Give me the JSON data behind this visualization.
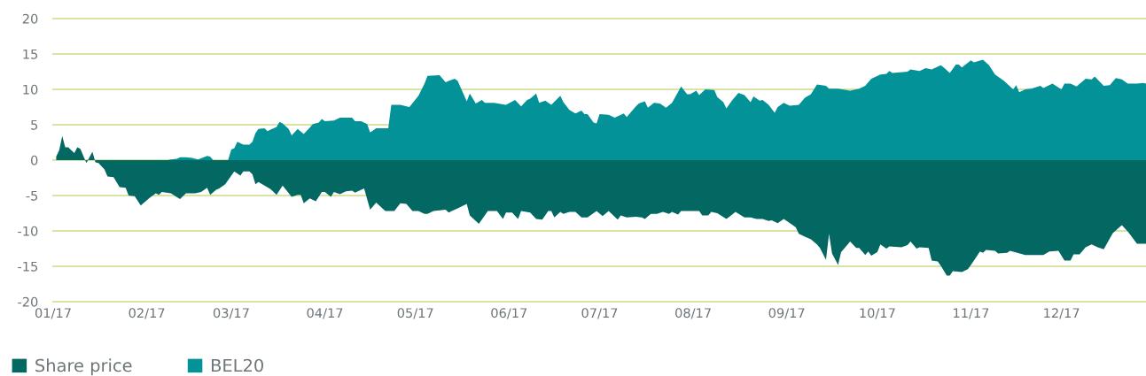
{
  "chart_data": {
    "type": "area",
    "series": [
      {
        "name": "Share price",
        "color": "#036862",
        "x": [
          "2017-01-02",
          "2017-01-03",
          "2017-01-04",
          "2017-01-05",
          "2017-01-06",
          "2017-01-08",
          "2017-01-09",
          "2017-01-10",
          "2017-01-12",
          "2017-01-14",
          "2017-01-15",
          "2017-01-16",
          "2017-01-18",
          "2017-01-19",
          "2017-01-21",
          "2017-01-23",
          "2017-01-25",
          "2017-01-26",
          "2017-01-28",
          "2017-01-30",
          "2017-02-02",
          "2017-02-04",
          "2017-02-05",
          "2017-02-06",
          "2017-02-09",
          "2017-02-12",
          "2017-02-14",
          "2017-02-17",
          "2017-02-19",
          "2017-02-21",
          "2017-02-22",
          "2017-02-24",
          "2017-02-25",
          "2017-02-27",
          "2017-03-01",
          "2017-03-02",
          "2017-03-04",
          "2017-03-05",
          "2017-03-07",
          "2017-03-08",
          "2017-03-09",
          "2017-03-10",
          "2017-03-12",
          "2017-03-14",
          "2017-03-16",
          "2017-03-18",
          "2017-03-21",
          "2017-03-23",
          "2017-03-24",
          "2017-03-25",
          "2017-03-27",
          "2017-03-29",
          "2017-03-31",
          "2017-04-01",
          "2017-04-03",
          "2017-04-04",
          "2017-04-06",
          "2017-04-08",
          "2017-04-10",
          "2017-04-11",
          "2017-04-14",
          "2017-04-16",
          "2017-04-18",
          "2017-04-21",
          "2017-04-24",
          "2017-04-26",
          "2017-04-28",
          "2017-04-30",
          "2017-05-02",
          "2017-05-04",
          "2017-05-05",
          "2017-05-07",
          "2017-05-11",
          "2017-05-12",
          "2017-05-15",
          "2017-05-18",
          "2017-05-19",
          "2017-05-22",
          "2017-05-25",
          "2017-05-28",
          "2017-05-30",
          "2017-05-31",
          "2017-06-02",
          "2017-06-04",
          "2017-06-05",
          "2017-06-08",
          "2017-06-10",
          "2017-06-12",
          "2017-06-14",
          "2017-06-15",
          "2017-06-16",
          "2017-06-18",
          "2017-06-19",
          "2017-06-21",
          "2017-06-23",
          "2017-06-25",
          "2017-06-27",
          "2017-06-30",
          "2017-07-02",
          "2017-07-04",
          "2017-07-07",
          "2017-07-08",
          "2017-07-10",
          "2017-07-13",
          "2017-07-15",
          "2017-07-16",
          "2017-07-18",
          "2017-07-20",
          "2017-07-22",
          "2017-07-24",
          "2017-07-25",
          "2017-07-27",
          "2017-07-28",
          "2017-08-03",
          "2017-08-04",
          "2017-08-06",
          "2017-08-07",
          "2017-08-09",
          "2017-08-12",
          "2017-08-13",
          "2017-08-15",
          "2017-08-18",
          "2017-08-20",
          "2017-08-22",
          "2017-08-24",
          "2017-08-26",
          "2017-08-27",
          "2017-08-29",
          "2017-08-31",
          "2017-09-01",
          "2017-09-03",
          "2017-09-04",
          "2017-09-05",
          "2017-09-07",
          "2017-09-09",
          "2017-09-11",
          "2017-09-12",
          "2017-09-14",
          "2017-09-15",
          "2017-09-16",
          "2017-09-18",
          "2017-09-19",
          "2017-09-22",
          "2017-09-24",
          "2017-09-25",
          "2017-09-27",
          "2017-09-28",
          "2017-09-29",
          "2017-10-01",
          "2017-10-02",
          "2017-10-04",
          "2017-10-05",
          "2017-10-09",
          "2017-10-11",
          "2017-10-12",
          "2017-10-14",
          "2017-10-15",
          "2017-10-18",
          "2017-10-19",
          "2017-10-21",
          "2017-10-22",
          "2017-10-24",
          "2017-10-25",
          "2017-10-26",
          "2017-10-29",
          "2017-10-31",
          "2017-11-01",
          "2017-11-02",
          "2017-11-04",
          "2017-11-05",
          "2017-11-06",
          "2017-11-09",
          "2017-11-10",
          "2017-11-13",
          "2017-11-14",
          "2017-11-19",
          "2017-11-25",
          "2017-11-27",
          "2017-11-30",
          "2017-12-01",
          "2017-12-02",
          "2017-12-04",
          "2017-12-05",
          "2017-12-07",
          "2017-12-09",
          "2017-12-11",
          "2017-12-13",
          "2017-12-15",
          "2017-12-18",
          "2017-12-21",
          "2017-12-23",
          "2017-12-26",
          "2017-12-29"
        ],
        "values": [
          0.5,
          1.4,
          3.4,
          1.8,
          1.8,
          1.0,
          1.8,
          1.6,
          -0.4,
          1.2,
          -0.3,
          -0.4,
          -1.3,
          -2.3,
          -2.4,
          -3.8,
          -3.9,
          -5.0,
          -5.1,
          -6.4,
          -5.3,
          -4.7,
          -4.9,
          -4.5,
          -4.7,
          -5.5,
          -4.7,
          -4.7,
          -4.5,
          -3.9,
          -4.9,
          -4.2,
          -4.0,
          -3.4,
          -2.2,
          -1.6,
          -2.2,
          -1.6,
          -1.6,
          -2.0,
          -3.4,
          -3.1,
          -3.6,
          -4.1,
          -4.9,
          -3.6,
          -5.2,
          -4.9,
          -4.9,
          -6.1,
          -5.4,
          -5.8,
          -4.5,
          -4.5,
          -5.2,
          -4.5,
          -4.8,
          -4.4,
          -4.3,
          -4.6,
          -4.0,
          -7.0,
          -6.0,
          -7.2,
          -7.2,
          -6.1,
          -6.2,
          -7.2,
          -7.2,
          -7.6,
          -7.6,
          -7.2,
          -7.0,
          -7.4,
          -6.8,
          -6.2,
          -7.8,
          -9.0,
          -7.2,
          -7.2,
          -8.3,
          -7.4,
          -7.4,
          -8.3,
          -7.2,
          -7.4,
          -8.3,
          -8.4,
          -7.2,
          -7.2,
          -8.1,
          -7.3,
          -7.6,
          -7.3,
          -7.3,
          -8.1,
          -8.1,
          -7.2,
          -7.9,
          -7.2,
          -8.4,
          -7.8,
          -8.1,
          -8.0,
          -8.1,
          -8.3,
          -7.6,
          -7.6,
          -7.3,
          -7.6,
          -7.3,
          -7.7,
          -7.2,
          -7.2,
          -7.8,
          -7.8,
          -7.3,
          -7.5,
          -8.3,
          -8.0,
          -7.3,
          -8.1,
          -8.1,
          -8.3,
          -8.3,
          -8.6,
          -8.5,
          -8.9,
          -8.3,
          -8.6,
          -9.2,
          -9.5,
          -10.4,
          -10.8,
          -11.2,
          -11.9,
          -12.4,
          -14.1,
          -10.4,
          -13.2,
          -14.8,
          -13.0,
          -11.5,
          -12.4,
          -12.4,
          -13.4,
          -12.9,
          -13.5,
          -13.0,
          -11.9,
          -12.5,
          -12.2,
          -12.3,
          -12.0,
          -11.5,
          -12.5,
          -12.3,
          -12.4,
          -14.2,
          -14.3,
          -14.9,
          -16.3,
          -16.3,
          -15.7,
          -15.8,
          -15.4,
          -14.8,
          -14.2,
          -12.9,
          -13.1,
          -12.7,
          -12.8,
          -13.2,
          -13.1,
          -12.8,
          -13.4,
          -13.4,
          -12.9,
          -12.8,
          -13.5,
          -14.2,
          -14.2,
          -13.3,
          -13.3,
          -12.3,
          -11.9,
          -12.3,
          -12.6,
          -10.3,
          -9.2,
          -10.1,
          -11.8,
          -11.8
        ]
      },
      {
        "name": "BEL20",
        "color": "#039297",
        "x": [
          "2017-02-08",
          "2017-02-09",
          "2017-02-11",
          "2017-02-12",
          "2017-02-14",
          "2017-02-16",
          "2017-02-18",
          "2017-02-21",
          "2017-02-22",
          "2017-02-23",
          "2017-02-26",
          "2017-02-28",
          "2017-03-01",
          "2017-03-02",
          "2017-03-03",
          "2017-03-05",
          "2017-03-07",
          "2017-03-08",
          "2017-03-09",
          "2017-03-10",
          "2017-03-12",
          "2017-03-13",
          "2017-03-14",
          "2017-03-16",
          "2017-03-17",
          "2017-03-18",
          "2017-03-20",
          "2017-03-21",
          "2017-03-23",
          "2017-03-25",
          "2017-03-27",
          "2017-03-28",
          "2017-03-30",
          "2017-03-31",
          "2017-04-01",
          "2017-04-04",
          "2017-04-06",
          "2017-04-10",
          "2017-04-11",
          "2017-04-13",
          "2017-04-15",
          "2017-04-16",
          "2017-04-18",
          "2017-04-21",
          "2017-04-22",
          "2017-04-23",
          "2017-04-26",
          "2017-04-29",
          "2017-05-02",
          "2017-05-04",
          "2017-05-05",
          "2017-05-09",
          "2017-05-11",
          "2017-05-12",
          "2017-05-14",
          "2017-05-15",
          "2017-05-18",
          "2017-05-19",
          "2017-05-21",
          "2017-05-23",
          "2017-05-24",
          "2017-05-27",
          "2017-05-31",
          "2017-06-03",
          "2017-06-05",
          "2017-06-07",
          "2017-06-08",
          "2017-06-10",
          "2017-06-11",
          "2017-06-13",
          "2017-06-15",
          "2017-06-18",
          "2017-06-19",
          "2017-06-21",
          "2017-06-23",
          "2017-06-25",
          "2017-06-26",
          "2017-06-27",
          "2017-06-29",
          "2017-06-30",
          "2017-07-01",
          "2017-07-04",
          "2017-07-06",
          "2017-07-09",
          "2017-07-10",
          "2017-07-13",
          "2017-07-14",
          "2017-07-16",
          "2017-07-17",
          "2017-07-19",
          "2017-07-21",
          "2017-07-23",
          "2017-07-25",
          "2017-07-28",
          "2017-07-30",
          "2017-07-31",
          "2017-08-02",
          "2017-08-03",
          "2017-08-05",
          "2017-08-08",
          "2017-08-09",
          "2017-08-11",
          "2017-08-12",
          "2017-08-14",
          "2017-08-16",
          "2017-08-18",
          "2017-08-20",
          "2017-08-21",
          "2017-08-23",
          "2017-08-24",
          "2017-08-26",
          "2017-08-28",
          "2017-08-29",
          "2017-08-31",
          "2017-09-02",
          "2017-09-05",
          "2017-09-07",
          "2017-09-09",
          "2017-09-11",
          "2017-09-14",
          "2017-09-15",
          "2017-09-18",
          "2017-09-22",
          "2017-09-25",
          "2017-09-27",
          "2017-09-29",
          "2017-10-02",
          "2017-10-04",
          "2017-10-05",
          "2017-10-06",
          "2017-10-11",
          "2017-10-12",
          "2017-10-15",
          "2017-10-17",
          "2017-10-19",
          "2017-10-22",
          "2017-10-23",
          "2017-10-25",
          "2017-10-27",
          "2017-10-28",
          "2017-10-29",
          "2017-11-01",
          "2017-11-02",
          "2017-11-05",
          "2017-11-07",
          "2017-11-09",
          "2017-11-12",
          "2017-11-15",
          "2017-11-16",
          "2017-11-17",
          "2017-11-19",
          "2017-11-21",
          "2017-11-24",
          "2017-11-25",
          "2017-11-28",
          "2017-12-01",
          "2017-12-02",
          "2017-12-04",
          "2017-12-06",
          "2017-12-09",
          "2017-12-11",
          "2017-12-12",
          "2017-12-15",
          "2017-12-17",
          "2017-12-19",
          "2017-12-21",
          "2017-12-23",
          "2017-12-26",
          "2017-12-28",
          "2017-12-29"
        ],
        "values": [
          0,
          0.1,
          0.2,
          0.4,
          0.4,
          0.3,
          0.1,
          0.6,
          0.5,
          0,
          null,
          0.1,
          1.5,
          1.7,
          2.6,
          2.2,
          2.2,
          2.6,
          3.8,
          4.4,
          4.5,
          4.1,
          4.3,
          4.7,
          5.4,
          5.2,
          4.4,
          3.5,
          4.4,
          3.7,
          4.6,
          5.1,
          5.3,
          5.8,
          5.5,
          5.6,
          6.0,
          6.0,
          5.5,
          5.5,
          5.1,
          3.9,
          4.5,
          4.5,
          4.5,
          7.8,
          7.8,
          7.5,
          9.1,
          10.8,
          11.9,
          12.0,
          11.0,
          11.2,
          11.5,
          11.2,
          8.3,
          9.4,
          8.0,
          8.5,
          8.1,
          8.1,
          7.8,
          8.5,
          7.6,
          8.5,
          8.7,
          9.4,
          8.1,
          8.4,
          7.8,
          9.1,
          8.2,
          7.1,
          6.6,
          7.0,
          6.5,
          6.5,
          5.3,
          5.2,
          6.5,
          6.4,
          6.0,
          6.6,
          6.1,
          7.6,
          8.0,
          8.3,
          7.4,
          8.1,
          8.0,
          7.4,
          8.1,
          10.4,
          9.3,
          9.3,
          9.8,
          9.2,
          10.0,
          9.9,
          8.9,
          8.2,
          7.3,
          8.5,
          9.5,
          9.2,
          8.2,
          9.0,
          8.4,
          8.5,
          7.8,
          6.7,
          7.5,
          8.1,
          7.7,
          7.8,
          8.8,
          9.3,
          10.7,
          10.5,
          10.1,
          10.1,
          9.8,
          10.1,
          10.5,
          11.5,
          12.1,
          12.2,
          12.6,
          12.3,
          12.5,
          12.8,
          12.6,
          13.0,
          12.8,
          13.4,
          13.1,
          12.3,
          13.5,
          13.5,
          13.1,
          14.1,
          13.8,
          14.2,
          13.4,
          12.1,
          11.2,
          10.0,
          10.6,
          9.6,
          10.0,
          10.1,
          10.5,
          10.2,
          10.8,
          10.0,
          10.8,
          10.8,
          10.4,
          11.5,
          11.4,
          11.8,
          10.5,
          10.6,
          11.6,
          11.4,
          10.8,
          10.8,
          10.9,
          10.8
        ]
      }
    ],
    "xlim": [
      "2017-01-01",
      "2017-12-29"
    ],
    "xticks": [
      {
        "value": "2017-01-01",
        "label": "01/17"
      },
      {
        "value": "2017-02-01",
        "label": "02/17"
      },
      {
        "value": "2017-03-01",
        "label": "03/17"
      },
      {
        "value": "2017-04-01",
        "label": "04/17"
      },
      {
        "value": "2017-05-01",
        "label": "05/17"
      },
      {
        "value": "2017-06-01",
        "label": "06/17"
      },
      {
        "value": "2017-07-01",
        "label": "07/17"
      },
      {
        "value": "2017-08-01",
        "label": "08/17"
      },
      {
        "value": "2017-09-01",
        "label": "09/17"
      },
      {
        "value": "2017-10-01",
        "label": "10/17"
      },
      {
        "value": "2017-11-01",
        "label": "11/17"
      },
      {
        "value": "2017-12-01",
        "label": "12/17"
      }
    ],
    "ylim": [
      -20,
      20
    ],
    "yticks": [
      -20,
      -15,
      -10,
      -5,
      0,
      5,
      10,
      15,
      20
    ],
    "grid": "y",
    "legend": "bottom"
  }
}
